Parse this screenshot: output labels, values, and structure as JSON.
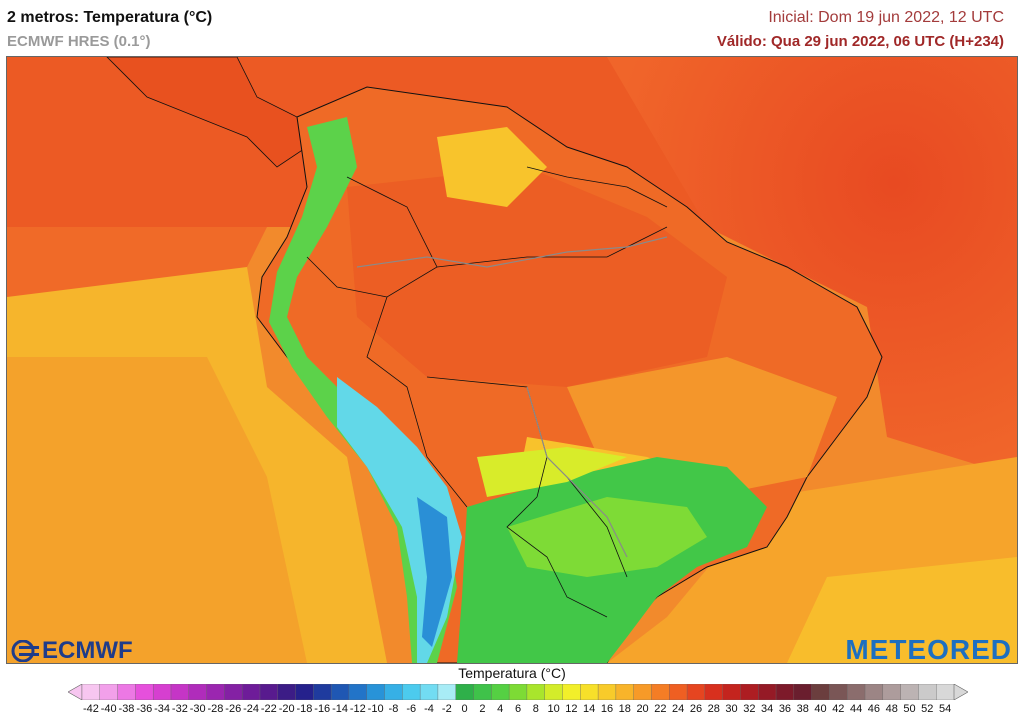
{
  "header": {
    "title": "2 metros: Temperatura (°C)",
    "subtitle": "ECMWF HRES (0.1°)",
    "initial": "Inicial: Dom 19 jun 2022, 12 UTC",
    "valid": "Válido: Qua 29 jun 2022, 06 UTC (H+234)"
  },
  "logos": {
    "left": "ECMWF",
    "right": "METEORED"
  },
  "legend": {
    "title": "Temperatura (°C)",
    "ticks": [
      "-42",
      "-40",
      "-38",
      "-36",
      "-34",
      "-32",
      "-30",
      "-28",
      "-26",
      "-24",
      "-22",
      "-20",
      "-18",
      "-16",
      "-14",
      "-12",
      "-10",
      "-8",
      "-6",
      "-4",
      "-2",
      "0",
      "2",
      "4",
      "6",
      "8",
      "10",
      "12",
      "14",
      "16",
      "18",
      "20",
      "22",
      "24",
      "26",
      "28",
      "30",
      "32",
      "34",
      "36",
      "38",
      "40",
      "42",
      "44",
      "46",
      "48",
      "50",
      "52",
      "54"
    ],
    "colors": [
      "#f7c6f0",
      "#f2a0ea",
      "#ec78e4",
      "#e650dc",
      "#d63fd0",
      "#c535c6",
      "#b02cbb",
      "#9b26b0",
      "#8421a4",
      "#6e1c99",
      "#581a8e",
      "#3c1c86",
      "#25218c",
      "#1f3b9e",
      "#1f57b3",
      "#2274c8",
      "#2893d8",
      "#36b0e6",
      "#4ccbee",
      "#72dcf2",
      "#a8ecf6",
      "#2fb04a",
      "#3fc24a",
      "#55d043",
      "#7ddb35",
      "#a9e52c",
      "#d3ec2a",
      "#f2ef2a",
      "#f7e02a",
      "#f8cb2a",
      "#f8b42a",
      "#f79a28",
      "#f47d25",
      "#ef5f22",
      "#e64520",
      "#d8301e",
      "#c4241e",
      "#ad1d22",
      "#951a26",
      "#7d1a2a",
      "#6a1e2e",
      "#6b3e3e",
      "#7a5656",
      "#8b6d6d",
      "#9c8585",
      "#ad9c9c",
      "#bcb3b3",
      "#cbcaca",
      "#d8d8d8"
    ]
  }
}
